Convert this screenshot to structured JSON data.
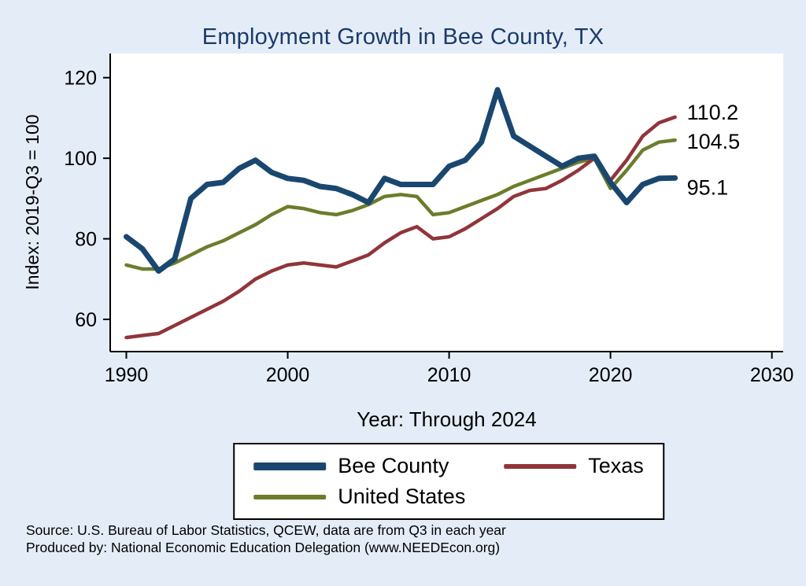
{
  "title": "Employment Growth in Bee County, TX",
  "chart_data": {
    "type": "line",
    "title": "Employment Growth in Bee County, TX",
    "xlabel": "Year: Through 2024",
    "ylabel": "Index: 2019-Q3 = 100",
    "xlim": [
      1989,
      2030.7
    ],
    "ylim": [
      52,
      126
    ],
    "xticks": [
      1990,
      2000,
      2010,
      2020,
      2030
    ],
    "yticks": [
      60,
      80,
      100,
      120
    ],
    "grid": false,
    "legend_position": "bottom",
    "x": [
      1990,
      1991,
      1992,
      1993,
      1994,
      1995,
      1996,
      1997,
      1998,
      1999,
      2000,
      2001,
      2002,
      2003,
      2004,
      2005,
      2006,
      2007,
      2008,
      2009,
      2010,
      2011,
      2012,
      2013,
      2014,
      2015,
      2016,
      2017,
      2018,
      2019,
      2020,
      2021,
      2022,
      2023,
      2024
    ],
    "series": [
      {
        "name": "Bee County",
        "color": "#1a476f",
        "end_label": "95.1",
        "values": [
          80.5,
          77.5,
          72,
          75,
          90,
          93.5,
          94,
          97.5,
          99.5,
          96.5,
          95,
          94.5,
          93,
          92.5,
          91,
          89,
          95,
          93.5,
          93.5,
          93.5,
          98,
          99.5,
          104,
          117,
          105.5,
          103,
          100.5,
          98,
          100,
          100.5,
          94,
          89,
          93.5,
          95,
          95.1
        ]
      },
      {
        "name": "Texas",
        "color": "#90353b",
        "end_label": "110.2",
        "values": [
          55.5,
          56,
          56.5,
          58.5,
          60.5,
          62.5,
          64.5,
          67,
          70,
          72,
          73.5,
          74,
          73.5,
          73,
          74.5,
          76,
          79,
          81.5,
          83,
          80,
          80.5,
          82.5,
          85,
          87.5,
          90.5,
          92,
          92.5,
          94.5,
          97,
          100,
          94.5,
          99.5,
          105.5,
          108.8,
          110.2
        ]
      },
      {
        "name": "United States",
        "color": "#6b7d2b",
        "end_label": "104.5",
        "values": [
          73.5,
          72.5,
          72.5,
          74,
          76,
          78,
          79.5,
          81.5,
          83.5,
          86,
          88,
          87.5,
          86.5,
          86,
          87,
          88.5,
          90.5,
          91,
          90.5,
          86,
          86.5,
          88,
          89.5,
          91,
          93,
          94.5,
          96,
          97.5,
          99,
          100,
          92.5,
          97,
          102,
          104,
          104.5
        ]
      }
    ]
  },
  "notes": {
    "source": "Source: U.S. Bureau of Labor Statistics, QCEW, data are from Q3 in each year",
    "produced_by": "Produced by: National Economic Education Delegation (www.NEEDEcon.org)"
  }
}
